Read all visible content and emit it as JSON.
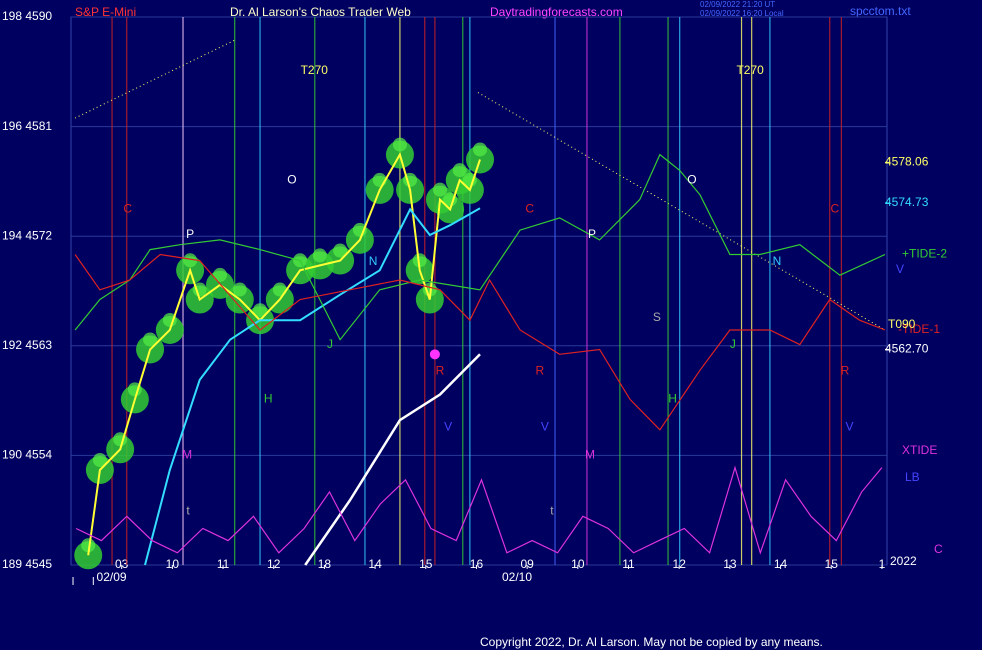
{
  "chart_data": {
    "type": "line",
    "title": "S&P E-Mini",
    "subtitle": "Dr. Al Larson's Chaos Trader Web",
    "website": "Daytradingforecasts.com",
    "timestamps": [
      "02/09/2022 21:20 UT",
      "02/09/2022 16:20 Local"
    ],
    "file_name": "spcctom.txt",
    "copyright": "Copyright 2022, Dr. Al Larson. May not be copied by any means.",
    "year_label": "2022",
    "xlim": [
      0,
      16.1
    ],
    "ylim": [
      4545,
      4590
    ],
    "yticks": [
      {
        "value": 4545,
        "label": "189  4545"
      },
      {
        "value": 4554,
        "label": "190  4554"
      },
      {
        "value": 4563,
        "label": "192  4563"
      },
      {
        "value": 4572,
        "label": "194  4572"
      },
      {
        "value": 4581,
        "label": "196  4581"
      },
      {
        "value": 4590,
        "label": "198  4590"
      }
    ],
    "xticks": [
      {
        "value": 1,
        "label": "03"
      },
      {
        "value": 2,
        "label": "10"
      },
      {
        "value": 3,
        "label": "11"
      },
      {
        "value": 4,
        "label": "12"
      },
      {
        "value": 5,
        "label": "18"
      },
      {
        "value": 6,
        "label": "14"
      },
      {
        "value": 7,
        "label": "15"
      },
      {
        "value": 8,
        "label": "16"
      },
      {
        "value": 9,
        "label": "09"
      },
      {
        "value": 10,
        "label": "10"
      },
      {
        "value": 11,
        "label": "11"
      },
      {
        "value": 12,
        "label": "12"
      },
      {
        "value": 13,
        "label": "13"
      },
      {
        "value": 14,
        "label": "14"
      },
      {
        "value": 15,
        "label": "15"
      },
      {
        "value": 16,
        "label": "1"
      }
    ],
    "date_labels": [
      {
        "value": 0.8,
        "label": "02/09"
      },
      {
        "value": 8.8,
        "label": "02/10"
      }
    ],
    "grid": true,
    "series": [
      {
        "color": "#ffff33",
        "x": [
          0.34,
          0.57,
          0.97,
          1.26,
          1.56,
          1.95,
          2.35,
          2.54,
          2.94,
          3.33,
          3.73,
          4.12,
          4.52,
          4.91,
          5.31,
          5.7,
          6.09,
          6.49,
          6.69,
          6.88,
          7.08,
          7.28,
          7.48,
          7.67,
          7.87,
          8.07
        ],
        "values": [
          4545.8,
          4552.8,
          4554.5,
          4558.6,
          4562.7,
          4564.3,
          4569.2,
          4566.8,
          4568,
          4566.8,
          4565.1,
          4566.8,
          4569.2,
          4569.6,
          4570,
          4571.7,
          4575.8,
          4578.7,
          4575.8,
          4569.2,
          4566.8,
          4575,
          4574.2,
          4576.6,
          4575.8,
          4578.3
        ]
      },
      {
        "color": "#33ddff",
        "x": [
          1.46,
          1.95,
          2.54,
          3.14,
          3.73,
          4.52,
          5.31,
          6.09,
          6.69,
          7.08,
          7.48,
          8.07
        ],
        "values": [
          4545,
          4552.8,
          4560.2,
          4563.5,
          4565.1,
          4565.1,
          4567.2,
          4569.2,
          4574.2,
          4572.1,
          4572.9,
          4574.3
        ]
      },
      {
        "color": "#ffffff",
        "x": [
          4.62,
          5.5,
          6.49,
          7.28,
          8.07
        ],
        "values": [
          4545,
          4550.3,
          4556.9,
          4559,
          4562.3
        ]
      },
      {
        "name": "+TIDE-2",
        "color": "#33cc33",
        "x": [
          0.08,
          0.57,
          1.16,
          1.56,
          2.15,
          2.94,
          3.73,
          4.52,
          5.31,
          6.09,
          6.88,
          8.07,
          8.86,
          9.64,
          10.43,
          11.22,
          11.62,
          12.01,
          12.41,
          13,
          13.59,
          14.38,
          15.17,
          16.06
        ],
        "values": [
          4564.3,
          4566.8,
          4568.4,
          4570.9,
          4571.3,
          4571.7,
          4570.9,
          4570,
          4563.5,
          4567.6,
          4568.4,
          4567.6,
          4572.5,
          4573.5,
          4571.7,
          4575,
          4578.7,
          4577.4,
          4575.4,
          4570.5,
          4570.5,
          4571.3,
          4568.8,
          4570.5
        ]
      },
      {
        "name": "-TIDE-1",
        "color": "#dd2222",
        "x": [
          0.08,
          0.57,
          1.16,
          1.76,
          2.54,
          3.73,
          4.52,
          5.5,
          6.49,
          7.28,
          7.87,
          8.26,
          8.86,
          9.64,
          10.43,
          11.03,
          11.62,
          12.41,
          13,
          13.79,
          14.38,
          14.97,
          15.56,
          16.06
        ],
        "values": [
          4570.5,
          4567.6,
          4568.4,
          4570.5,
          4570,
          4564.3,
          4566.8,
          4567.6,
          4568.4,
          4567.6,
          4565.1,
          4568.4,
          4564.3,
          4562.3,
          4562.7,
          4558.6,
          4556.1,
          4561,
          4564.3,
          4564.3,
          4563.1,
          4566.8,
          4565.1,
          4564.3
        ]
      },
      {
        "name": "XTIDE",
        "color": "#dd33dd",
        "x": [
          0.1,
          0.6,
          1.1,
          1.6,
          2.1,
          2.6,
          3.1,
          3.6,
          4.1,
          4.6,
          5.1,
          5.6,
          6.1,
          6.6,
          7.1,
          7.6,
          8.1,
          8.6,
          9.1,
          9.6,
          10.1,
          10.6,
          11.1,
          11.6,
          12.1,
          12.6,
          13.1,
          13.6,
          14.1,
          14.6,
          15.1,
          15.6,
          16.0
        ],
        "values": [
          4548,
          4547,
          4549,
          4547,
          4546,
          4548,
          4547,
          4549,
          4546,
          4548,
          4551,
          4547,
          4550,
          4552,
          4548,
          4547,
          4552,
          4546,
          4547,
          4546,
          4549,
          4548,
          4546,
          4547,
          4548,
          4546,
          4553,
          4546,
          4552,
          4549,
          4547,
          4551,
          4553
        ]
      }
    ],
    "price_labels": [
      {
        "value": 4578.06,
        "label": "4578.06",
        "color": "#ffff66"
      },
      {
        "value": 4574.73,
        "label": "4574.73",
        "color": "#33ddff"
      },
      {
        "value": 4562.7,
        "label": "4562.70",
        "color": "#ffffff"
      }
    ],
    "side_labels": [
      {
        "text": "V",
        "color": "#4444ff"
      },
      {
        "text": "T090",
        "color": "#ffff66"
      },
      {
        "text": "LB",
        "color": "#4444ff"
      },
      {
        "text": "C",
        "color": "#dd33dd"
      }
    ],
    "vertical_lines": [
      {
        "x": 0.81,
        "color": "#cc2222"
      },
      {
        "x": 1.1,
        "color": "#cc2222"
      },
      {
        "x": 2.21,
        "color": "#ffccff"
      },
      {
        "x": 3.23,
        "color": "#33cc33"
      },
      {
        "x": 3.73,
        "color": "#33ccff"
      },
      {
        "x": 4.81,
        "color": "#33cc33"
      },
      {
        "x": 5.8,
        "color": "#33ccff"
      },
      {
        "x": 6.49,
        "color": "#ffff66"
      },
      {
        "x": 6.98,
        "color": "#cc2222"
      },
      {
        "x": 7.18,
        "color": "#cc2222"
      },
      {
        "x": 7.73,
        "color": "#33cc33"
      },
      {
        "x": 7.87,
        "color": "#33ccff"
      },
      {
        "x": 9.55,
        "color": "#4466ff"
      },
      {
        "x": 10.18,
        "color": "#dd33dd"
      },
      {
        "x": 10.83,
        "color": "#33cc33"
      },
      {
        "x": 11.78,
        "color": "#33cc33"
      },
      {
        "x": 12.01,
        "color": "#33ccff"
      },
      {
        "x": 13.23,
        "color": "#ffff66"
      },
      {
        "x": 13.43,
        "color": "#ffff66"
      },
      {
        "x": 13.79,
        "color": "#33ccff"
      },
      {
        "x": 14.97,
        "color": "#cc2222"
      },
      {
        "x": 15.2,
        "color": "#cc2222"
      }
    ],
    "trend_lines": [
      {
        "x": [
          0.08,
          3.23
        ],
        "values": [
          4581.7,
          4588.1
        ],
        "color": "#ffff66"
      },
      {
        "x": [
          8.03,
          16.06
        ],
        "values": [
          4583.8,
          4564.3
        ],
        "color": "#ffff66"
      }
    ],
    "annotations": [
      {
        "text": "T270",
        "x": 4.8,
        "y": 4585.6,
        "color": "#ffff66"
      },
      {
        "text": "T270",
        "x": 13.4,
        "y": 4585.6,
        "color": "#ffff66"
      },
      {
        "text": "O",
        "x": 4.36,
        "y": 4576.6,
        "color": "#ffffff"
      },
      {
        "text": "O",
        "x": 12.25,
        "y": 4576.6,
        "color": "#ffffff"
      },
      {
        "text": "P",
        "x": 2.35,
        "y": 4572.1,
        "color": "#ffffff"
      },
      {
        "text": "P",
        "x": 10.28,
        "y": 4572.1,
        "color": "#ffffff"
      },
      {
        "text": "C",
        "x": 1.12,
        "y": 4574.2,
        "color": "#dd2222"
      },
      {
        "text": "C",
        "x": 9.05,
        "y": 4574.2,
        "color": "#dd2222"
      },
      {
        "text": "C",
        "x": 15.07,
        "y": 4574.2,
        "color": "#dd2222"
      },
      {
        "text": "N",
        "x": 5.96,
        "y": 4569.9,
        "color": "#33ccff"
      },
      {
        "text": "N",
        "x": 13.93,
        "y": 4569.9,
        "color": "#33ccff"
      },
      {
        "text": "J",
        "x": 5.11,
        "y": 4563.1,
        "color": "#33cc33"
      },
      {
        "text": "J",
        "x": 13.06,
        "y": 4563.1,
        "color": "#33cc33"
      },
      {
        "text": "H",
        "x": 3.89,
        "y": 4558.6,
        "color": "#33cc33"
      },
      {
        "text": "H",
        "x": 11.87,
        "y": 4558.6,
        "color": "#33cc33"
      },
      {
        "text": "R",
        "x": 7.28,
        "y": 4560.9,
        "color": "#dd2222"
      },
      {
        "text": "R",
        "x": 9.25,
        "y": 4560.9,
        "color": "#dd2222"
      },
      {
        "text": "R",
        "x": 15.27,
        "y": 4560.9,
        "color": "#dd2222"
      },
      {
        "text": "M",
        "x": 2.29,
        "y": 4554,
        "color": "#dd33dd"
      },
      {
        "text": "M",
        "x": 10.24,
        "y": 4554,
        "color": "#dd33dd"
      },
      {
        "text": "V",
        "x": 7.44,
        "y": 4556.3,
        "color": "#4444ff"
      },
      {
        "text": "V",
        "x": 9.35,
        "y": 4556.3,
        "color": "#4444ff"
      },
      {
        "text": "V",
        "x": 15.36,
        "y": 4556.3,
        "color": "#4444ff"
      },
      {
        "text": "S",
        "x": 11.56,
        "y": 4565.3,
        "color": "#aaaaaa"
      },
      {
        "text": "t",
        "x": 2.31,
        "y": 4549.4,
        "color": "#aaaaaa"
      },
      {
        "text": "t",
        "x": 9.49,
        "y": 4549.4,
        "color": "#aaaaaa"
      }
    ]
  }
}
